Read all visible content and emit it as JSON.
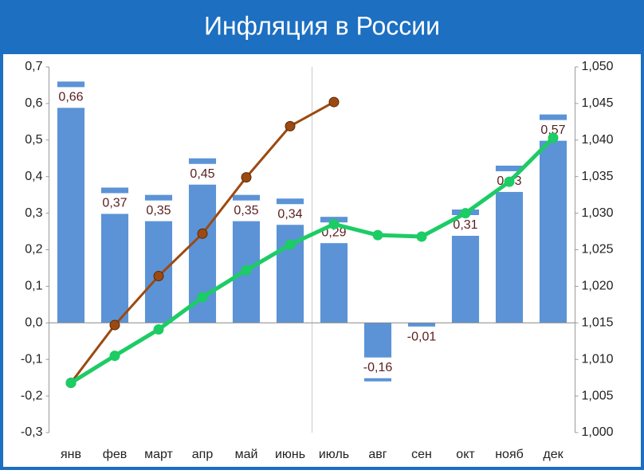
{
  "chart_data": {
    "type": "bar",
    "title": "Инфляция в России",
    "categories": [
      "янв",
      "фев",
      "март",
      "апр",
      "май",
      "июнь",
      "июль",
      "авг",
      "сен",
      "окт",
      "нояб",
      "дек"
    ],
    "values": [
      0.66,
      0.37,
      0.35,
      0.45,
      0.35,
      0.34,
      0.29,
      -0.16,
      -0.01,
      0.31,
      0.43,
      0.57
    ],
    "value_labels": [
      "0,66",
      "0,37",
      "0,35",
      "0,45",
      "0,35",
      "0,34",
      "0,29",
      "-0,16",
      "-0,01",
      "0,31",
      "0,43",
      "0,57"
    ],
    "color": "#5b93d6",
    "series": [
      {
        "color": "#9c4a12",
        "axis": "y2",
        "values": [
          1.0068,
          1.0147,
          1.0214,
          1.0272,
          1.0349,
          1.0419,
          1.0452,
          null,
          null,
          null,
          null,
          null
        ]
      },
      {
        "color": "#1ccc64",
        "axis": "y2",
        "values": [
          1.0068,
          1.0105,
          1.0141,
          1.0185,
          1.0222,
          1.0257,
          1.0285,
          1.027,
          1.0268,
          1.03,
          1.0343,
          1.0403
        ]
      }
    ],
    "ylim": [
      -0.3,
      0.7
    ],
    "yticks": [
      {
        "value": -0.3,
        "label": "-0,3"
      },
      {
        "value": -0.2,
        "label": "-0,2"
      },
      {
        "value": -0.1,
        "label": "-0,1"
      },
      {
        "value": 0,
        "label": "0,0"
      },
      {
        "value": 0.1,
        "label": "0,1"
      },
      {
        "value": 0.2,
        "label": "0,2"
      },
      {
        "value": 0.3,
        "label": "0,3"
      },
      {
        "value": 0.4,
        "label": "0,4"
      },
      {
        "value": 0.5,
        "label": "0,5"
      },
      {
        "value": 0.6,
        "label": "0,6"
      },
      {
        "value": 0.7,
        "label": "0,7"
      }
    ],
    "y2lim": [
      1.0,
      1.05
    ],
    "y2ticks": [
      {
        "value": 1.0,
        "label": "1,000"
      },
      {
        "value": 1.005,
        "label": "1,005"
      },
      {
        "value": 1.01,
        "label": "1,010"
      },
      {
        "value": 1.015,
        "label": "1,015"
      },
      {
        "value": 1.02,
        "label": "1,020"
      },
      {
        "value": 1.025,
        "label": "1,025"
      },
      {
        "value": 1.03,
        "label": "1,030"
      },
      {
        "value": 1.035,
        "label": "1,035"
      },
      {
        "value": 1.04,
        "label": "1,040"
      },
      {
        "value": 1.045,
        "label": "1,045"
      },
      {
        "value": 1.05,
        "label": "1,050"
      }
    ]
  }
}
